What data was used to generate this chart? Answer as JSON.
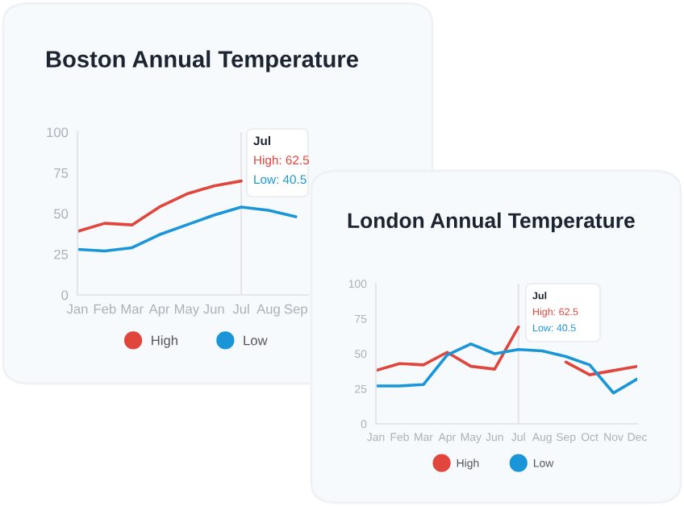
{
  "chart_data": [
    {
      "type": "line",
      "title": "Boston Annual Temperature",
      "categories": [
        "Jan",
        "Feb",
        "Mar",
        "Apr",
        "May",
        "Jun",
        "Jul",
        "Aug",
        "Sep"
      ],
      "series": [
        {
          "name": "High",
          "color": "#e0463c",
          "values": [
            39,
            44,
            43,
            54,
            62,
            67,
            70,
            null,
            null
          ]
        },
        {
          "name": "Low",
          "color": "#1a96d8",
          "values": [
            28,
            27,
            29,
            37,
            43,
            49,
            54,
            52,
            48
          ]
        }
      ],
      "ylim": [
        0,
        100
      ],
      "yticks": [
        0,
        25,
        50,
        75,
        100
      ],
      "grid": false,
      "legend": "bottom",
      "marker": "none",
      "line_style": "solid",
      "ref_lines": [
        {
          "axis": "x",
          "value": "Jul",
          "color": "#e6e6e6"
        }
      ],
      "annotations": [
        "Jul",
        "High: 62.5",
        "Low: 40.5"
      ]
    },
    {
      "type": "line",
      "title": "London Annual Temperature",
      "categories": [
        "Jan",
        "Feb",
        "Mar",
        "Apr",
        "May",
        "Jun",
        "Jul",
        "Aug",
        "Sep",
        "Oct",
        "Nov",
        "Dec"
      ],
      "series": [
        {
          "name": "High",
          "color": "#e0463c",
          "values": [
            38,
            43,
            42,
            51,
            41,
            39,
            69,
            null,
            44,
            35,
            38,
            41
          ]
        },
        {
          "name": "Low",
          "color": "#1a96d8",
          "values": [
            27,
            27,
            28,
            49,
            57,
            50,
            53,
            52,
            48,
            42,
            22,
            32
          ]
        }
      ],
      "ylim": [
        0,
        100
      ],
      "yticks": [
        0,
        25,
        50,
        75,
        100
      ],
      "grid": false,
      "legend": "bottom",
      "marker": "none",
      "line_style": "solid",
      "ref_lines": [
        {
          "axis": "x",
          "value": "Jul",
          "color": "#e6e6e6"
        }
      ],
      "annotations": [
        "Jul",
        "High: 62.5",
        "Low: 40.5"
      ]
    }
  ]
}
